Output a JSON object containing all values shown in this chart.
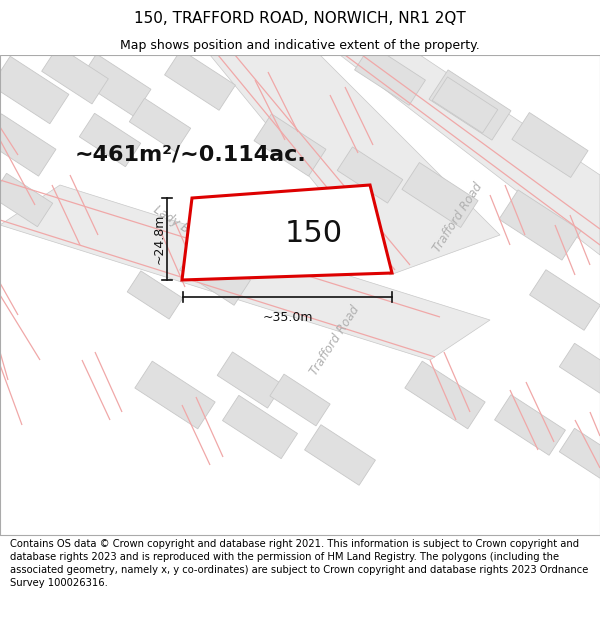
{
  "title": "150, TRAFFORD ROAD, NORWICH, NR1 2QT",
  "subtitle": "Map shows position and indicative extent of the property.",
  "footer": "Contains OS data © Crown copyright and database right 2021. This information is subject to Crown copyright and database rights 2023 and is reproduced with the permission of HM Land Registry. The polygons (including the associated geometry, namely x, y co-ordinates) are subject to Crown copyright and database rights 2023 Ordnance Survey 100026316.",
  "area_label": "~461m²/~0.114ac.",
  "width_label": "~35.0m",
  "height_label": "~24.8m",
  "property_number": "150",
  "map_bg": "#ffffff",
  "block_color": "#e0e0e0",
  "block_edge": "#c8c8c8",
  "road_fill": "#ebebeb",
  "road_edge": "#c8c8c8",
  "pink_line": "#f0a8a8",
  "red_outline": "#dd0000",
  "text_color": "#111111",
  "road_label_color": "#b0b0b0",
  "title_fontsize": 11,
  "subtitle_fontsize": 9,
  "footer_fontsize": 7.2,
  "area_fontsize": 16,
  "prop_num_fontsize": 22,
  "dim_fontsize": 9,
  "road_label_fontsize": 8.5
}
